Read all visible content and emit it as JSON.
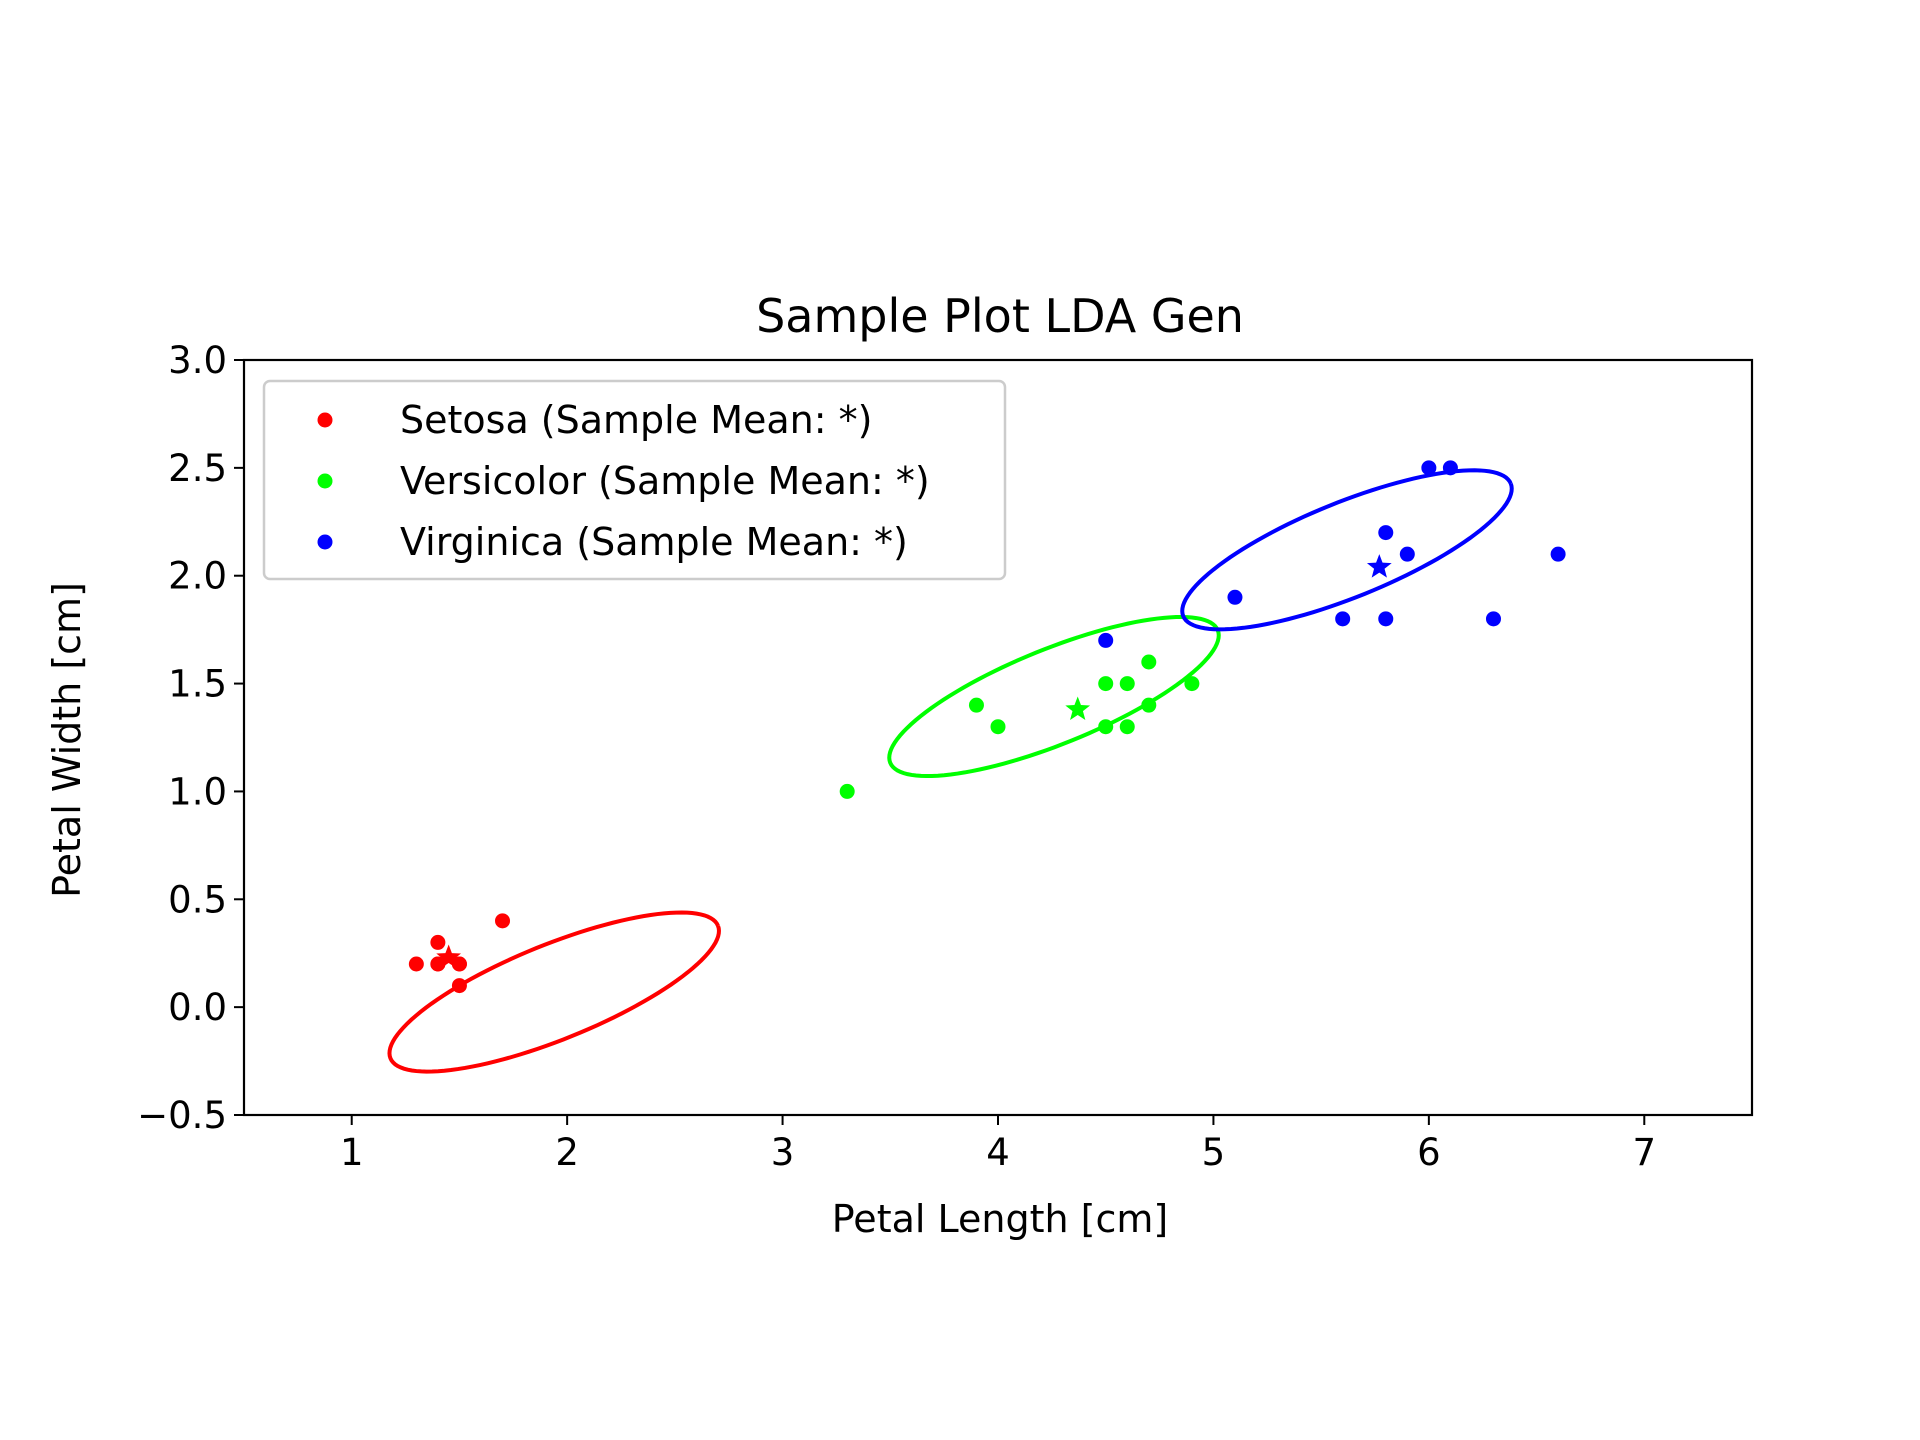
{
  "chart_data": {
    "type": "scatter",
    "title": "Sample Plot LDA Gen",
    "xlabel": "Petal Length [cm]",
    "ylabel": "Petal Width [cm]",
    "xlim": [
      0.5,
      7.5
    ],
    "ylim": [
      -0.5,
      3.0
    ],
    "xticks": [
      1,
      2,
      3,
      4,
      5,
      6,
      7
    ],
    "yticks": [
      -0.5,
      0.0,
      0.5,
      1.0,
      1.5,
      2.0,
      2.5,
      3.0
    ],
    "xtick_labels": [
      "1",
      "2",
      "3",
      "4",
      "5",
      "6",
      "7"
    ],
    "ytick_labels": [
      "−0.5",
      "0.0",
      "0.5",
      "1.0",
      "1.5",
      "2.0",
      "2.5",
      "3.0"
    ],
    "grid": false,
    "legend_position": "upper-left",
    "series": [
      {
        "name": "Setosa (Sample Mean: *)",
        "color": "#ff0000",
        "points": [
          [
            1.3,
            0.2
          ],
          [
            1.4,
            0.2
          ],
          [
            1.4,
            0.3
          ],
          [
            1.5,
            0.2
          ],
          [
            1.5,
            0.1
          ],
          [
            1.7,
            0.4
          ],
          [
            1.4,
            0.2
          ],
          [
            1.5,
            0.2
          ]
        ],
        "mean": [
          1.45,
          0.23
        ],
        "ellipse": {
          "center": [
            1.94,
            0.07
          ],
          "rx": 0.82,
          "ry": 0.22,
          "angle": 22
        }
      },
      {
        "name": "Versicolor (Sample Mean: *)",
        "color": "#00ff00",
        "points": [
          [
            3.3,
            1.0
          ],
          [
            3.9,
            1.4
          ],
          [
            4.0,
            1.3
          ],
          [
            4.5,
            1.5
          ],
          [
            4.5,
            1.3
          ],
          [
            4.6,
            1.5
          ],
          [
            4.6,
            1.3
          ],
          [
            4.7,
            1.6
          ],
          [
            4.7,
            1.4
          ],
          [
            4.9,
            1.5
          ]
        ],
        "mean": [
          4.37,
          1.38
        ],
        "ellipse": {
          "center": [
            4.26,
            1.44
          ],
          "rx": 0.82,
          "ry": 0.22,
          "angle": 22
        }
      },
      {
        "name": "Virginica (Sample Mean: *)",
        "color": "#0000ff",
        "points": [
          [
            4.5,
            1.7
          ],
          [
            5.1,
            1.9
          ],
          [
            5.6,
            1.8
          ],
          [
            5.8,
            1.8
          ],
          [
            5.8,
            2.2
          ],
          [
            5.9,
            2.1
          ],
          [
            6.0,
            2.5
          ],
          [
            6.1,
            2.5
          ],
          [
            6.3,
            1.8
          ],
          [
            6.6,
            2.1
          ]
        ],
        "mean": [
          5.77,
          2.04
        ],
        "ellipse": {
          "center": [
            5.62,
            2.12
          ],
          "rx": 0.82,
          "ry": 0.22,
          "angle": 22
        }
      }
    ]
  }
}
